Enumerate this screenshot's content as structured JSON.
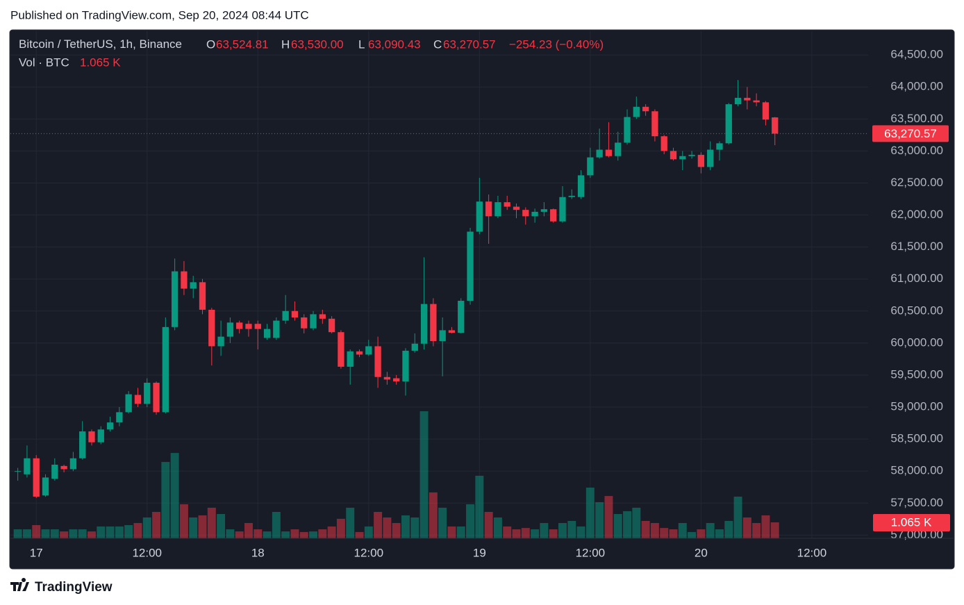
{
  "header": {
    "published": "Published on TradingView.com, Sep 20, 2024 08:44 UTC"
  },
  "footer": {
    "brand": "TradingView"
  },
  "chart_data": {
    "type": "candlestick",
    "title": "Bitcoin / TetherUS, 1h, Binance",
    "ohlc_legend": [
      {
        "label": "O",
        "value": "63,524.81"
      },
      {
        "label": "H",
        "value": "63,530.00"
      },
      {
        "label": "L",
        "value": "63,090.43"
      },
      {
        "label": "C",
        "value": "63,270.57"
      }
    ],
    "change": "−254.23 (−0.40%)",
    "volume_title": "Vol · BTC",
    "volume_label": "1.065 K",
    "last_price_label": "63,270.57",
    "up_color": "#089981",
    "down_color": "#f23645",
    "grid": true,
    "x": [
      -2,
      -1,
      0,
      1,
      2,
      3,
      4,
      5,
      6,
      7,
      8,
      9,
      10,
      11,
      12,
      13,
      14,
      15,
      16,
      17,
      18,
      19,
      20,
      21,
      22,
      23,
      24,
      25,
      26,
      27,
      28,
      29,
      30,
      31,
      32,
      33,
      34,
      35,
      36,
      37,
      38,
      39,
      40,
      41,
      42,
      43,
      44,
      45,
      46,
      47,
      48,
      49,
      50,
      51,
      52,
      53,
      54,
      55,
      56,
      57,
      58,
      59,
      60,
      61,
      62,
      63,
      64,
      65,
      66,
      67,
      68,
      69,
      70,
      71,
      72,
      73,
      74,
      75,
      76,
      77,
      78,
      79,
      80
    ],
    "open": [
      57990,
      57950,
      58200,
      57620,
      57880,
      58080,
      58030,
      58200,
      58620,
      58450,
      58650,
      58760,
      58920,
      59190,
      59050,
      59380,
      58920,
      60250,
      61120,
      60850,
      60950,
      60520,
      59950,
      60100,
      60320,
      60300,
      60300,
      60080,
      60080,
      60350,
      60500,
      60400,
      60230,
      60450,
      60380,
      60170,
      59630,
      59870,
      59820,
      59950,
      59470,
      59450,
      59400,
      59880,
      59990,
      60610,
      60030,
      60200,
      60160,
      60660,
      61740,
      62210,
      61980,
      62200,
      62130,
      62080,
      61980,
      62050,
      62090,
      61900,
      62280,
      62280,
      62620,
      62900,
      63020,
      62920,
      63130,
      63530,
      63690,
      63620,
      63230,
      63000,
      62870,
      62920,
      62940,
      62750,
      63020,
      63120,
      63730,
      63830,
      63790,
      63760,
      63524.81
    ],
    "high": [
      58050,
      58400,
      58250,
      57950,
      58200,
      58100,
      58300,
      58780,
      58650,
      58700,
      58850,
      59000,
      59250,
      59300,
      59450,
      59400,
      60400,
      61320,
      61280,
      61050,
      61000,
      60550,
      60350,
      60400,
      60350,
      60350,
      60350,
      60300,
      60400,
      60750,
      60650,
      60450,
      60500,
      60520,
      60420,
      60200,
      59900,
      59900,
      60050,
      60100,
      59550,
      59500,
      59920,
      60150,
      61340,
      60700,
      60400,
      60250,
      60700,
      61800,
      62580,
      62320,
      62300,
      62300,
      62180,
      62120,
      62100,
      62200,
      62100,
      62450,
      62400,
      62700,
      63050,
      63350,
      63450,
      63300,
      63650,
      63850,
      63730,
      63650,
      63250,
      63050,
      63000,
      63000,
      62980,
      63150,
      63150,
      63750,
      64110,
      64000,
      63900,
      63780,
      63530
    ],
    "low": [
      57850,
      57900,
      57580,
      57600,
      57850,
      57980,
      58000,
      58180,
      58400,
      58420,
      58620,
      58700,
      58900,
      59000,
      59000,
      58880,
      58900,
      60200,
      60750,
      60700,
      60450,
      59650,
      59800,
      60000,
      60150,
      60100,
      59900,
      60050,
      60050,
      60300,
      60350,
      60150,
      60200,
      60300,
      60150,
      59600,
      59350,
      59780,
      59800,
      59300,
      59350,
      59350,
      59180,
      59850,
      59900,
      59950,
      59480,
      60150,
      60150,
      60600,
      61700,
      61550,
      61950,
      62080,
      61950,
      61850,
      61880,
      61980,
      61880,
      61880,
      62250,
      62250,
      62580,
      62880,
      62900,
      62850,
      63100,
      63500,
      63550,
      63150,
      62950,
      62850,
      62700,
      62880,
      62650,
      62700,
      62850,
      63100,
      63700,
      63650,
      63700,
      63400,
      63090.43
    ],
    "close": [
      58000,
      58200,
      57600,
      57900,
      58100,
      58030,
      58200,
      58620,
      58450,
      58650,
      58760,
      58920,
      59200,
      59050,
      59380,
      58920,
      60250,
      61120,
      60850,
      60950,
      60520,
      59950,
      60100,
      60320,
      60220,
      60220,
      60220,
      60220,
      60350,
      60500,
      60400,
      60230,
      60450,
      60380,
      60170,
      59630,
      59870,
      59820,
      59950,
      59470,
      59430,
      59400,
      59880,
      59990,
      60610,
      60030,
      60200,
      60160,
      60660,
      61740,
      62210,
      61980,
      62200,
      62130,
      62080,
      61980,
      62050,
      62090,
      61900,
      62280,
      62300,
      62620,
      62900,
      63020,
      62920,
      63130,
      63530,
      63690,
      63620,
      63230,
      63000,
      62870,
      62920,
      62940,
      62750,
      63020,
      63120,
      63730,
      63830,
      63790,
      63760,
      63490,
      63270.57
    ],
    "volume": [
      600,
      600,
      880,
      600,
      600,
      460,
      600,
      600,
      460,
      790,
      790,
      790,
      880,
      1020,
      1390,
      1760,
      5090,
      5690,
      2270,
      1390,
      1530,
      2040,
      1620,
      600,
      460,
      1020,
      600,
      460,
      1760,
      460,
      600,
      420,
      460,
      600,
      790,
      1300,
      2040,
      420,
      790,
      1760,
      1390,
      1020,
      1530,
      1390,
      8470,
      3060,
      2040,
      790,
      790,
      2270,
      4170,
      1760,
      1390,
      790,
      600,
      690,
      600,
      1020,
      600,
      1020,
      1160,
      790,
      3380,
      2410,
      2820,
      1620,
      1810,
      2040,
      1160,
      1020,
      690,
      600,
      1020,
      420,
      600,
      1020,
      600,
      1160,
      2780,
      1390,
      1020,
      1530,
      1065
    ],
    "xlim": [
      -2.8,
      90.1
    ],
    "xticks": [
      {
        "value": 0,
        "label": "17"
      },
      {
        "value": 12,
        "label": "12:00"
      },
      {
        "value": 24,
        "label": "18"
      },
      {
        "value": 36,
        "label": "12:00"
      },
      {
        "value": 48,
        "label": "19"
      },
      {
        "value": 60,
        "label": "12:00"
      },
      {
        "value": 72,
        "label": "20"
      },
      {
        "value": 84,
        "label": "12:00"
      }
    ],
    "ylim": [
      56950,
      64870
    ],
    "yticks": [
      {
        "value": 57000,
        "label": "57,000.00"
      },
      {
        "value": 57500,
        "label": "57,500.00"
      },
      {
        "value": 58000,
        "label": "58,000.00"
      },
      {
        "value": 58500,
        "label": "58,500.00"
      },
      {
        "value": 59000,
        "label": "59,000.00"
      },
      {
        "value": 59500,
        "label": "59,500.00"
      },
      {
        "value": 60000,
        "label": "60,000.00"
      },
      {
        "value": 60500,
        "label": "60,500.00"
      },
      {
        "value": 61000,
        "label": "61,000.00"
      },
      {
        "value": 61500,
        "label": "61,500.00"
      },
      {
        "value": 62000,
        "label": "62,000.00"
      },
      {
        "value": 62500,
        "label": "62,500.00"
      },
      {
        "value": 63000,
        "label": "63,000.00"
      },
      {
        "value": 63500,
        "label": "63,500.00"
      },
      {
        "value": 64000,
        "label": "64,000.00"
      },
      {
        "value": 64500,
        "label": "64,500.00"
      }
    ],
    "y2lim": [
      0,
      10000
    ]
  }
}
